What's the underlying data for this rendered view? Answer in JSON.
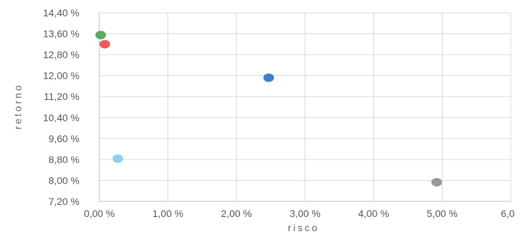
{
  "chart_data": {
    "type": "scatter",
    "title": "",
    "xlabel": "risco",
    "ylabel": "retorno",
    "xlim": [
      0,
      6
    ],
    "ylim": [
      7.2,
      14.4
    ],
    "x_ticks": [
      0,
      1,
      2,
      3,
      4,
      5,
      6
    ],
    "x_tick_labels": [
      "0,00 %",
      "1,00 %",
      "2,00 %",
      "3,00 %",
      "4,00 %",
      "5,00 %",
      "6,0"
    ],
    "y_ticks": [
      7.2,
      8.0,
      8.8,
      9.6,
      10.4,
      11.2,
      12.0,
      12.8,
      13.6,
      14.4
    ],
    "y_tick_labels": [
      "7,20 %",
      "8,00 %",
      "8,80 %",
      "9,60 %",
      "10,40 %",
      "11,20 %",
      "12,00 %",
      "12,80 %",
      "13,60 %",
      "14,40 %"
    ],
    "grid": true,
    "legend": "none",
    "points": [
      {
        "x": 0.02,
        "y": 13.55,
        "color": "#5aaa5f"
      },
      {
        "x": 0.08,
        "y": 13.2,
        "color": "#f25a5a"
      },
      {
        "x": 2.47,
        "y": 11.92,
        "color": "#3b7fd6"
      },
      {
        "x": 0.27,
        "y": 8.83,
        "color": "#8ecff2"
      },
      {
        "x": 4.92,
        "y": 7.93,
        "color": "#999999"
      }
    ]
  }
}
